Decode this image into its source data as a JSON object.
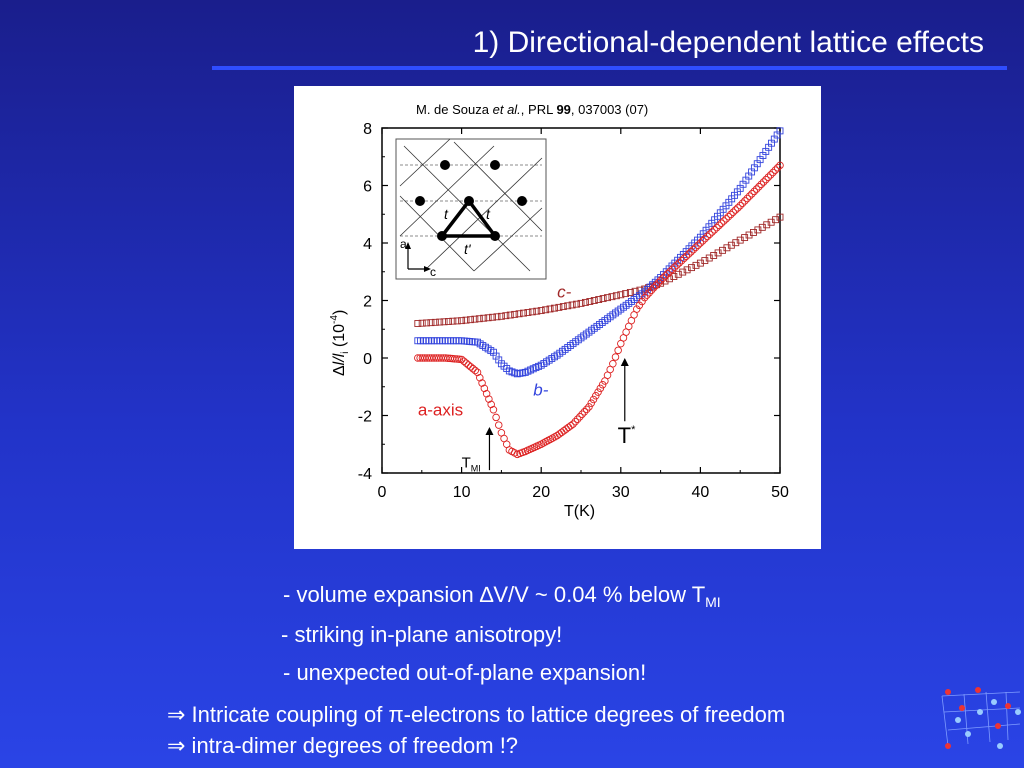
{
  "slide": {
    "title": "1) Directional-dependent lattice effects",
    "bullets": [
      {
        "pre": "- volume expansion ",
        "symbol": "∆",
        "mid": "V/V ~ 0.04 % below T",
        "sub": "MI"
      },
      {
        "text": "- striking in-plane anisotropy!"
      },
      {
        "text": "- unexpected out-of-plane expansion!"
      }
    ],
    "conclusions": [
      {
        "arrow": "⇒",
        "pre": " Intricate coupling of ",
        "symbol": "π",
        "post": "-electrons to lattice degrees of freedom"
      },
      {
        "arrow": "⇒",
        "text": " intra-dimer degrees of freedom !?"
      }
    ]
  },
  "chart_data": {
    "type": "scatter",
    "citation": {
      "authors": "M. de Souza ",
      "etal": "et al.",
      "journal": ", PRL ",
      "volume": "99",
      "rest": ", 037003 (07)"
    },
    "xlabel": "T(K)",
    "ylabel": {
      "delta": "Δ",
      "l": "l",
      "slash": "/l",
      "sub": "i",
      "unit": " (10",
      "exp": "-4",
      "close": ")"
    },
    "xlim": [
      0,
      50
    ],
    "ylim": [
      -4,
      8
    ],
    "xticks": [
      0,
      10,
      20,
      30,
      40,
      50
    ],
    "yticks": [
      -4,
      -2,
      0,
      2,
      4,
      6,
      8
    ],
    "grid": false,
    "series": [
      {
        "name": "c-",
        "marker": "square",
        "color": "#a02828",
        "points": [
          [
            4.5,
            1.2
          ],
          [
            10,
            1.3
          ],
          [
            15,
            1.45
          ],
          [
            20,
            1.65
          ],
          [
            25,
            1.9
          ],
          [
            30,
            2.2
          ],
          [
            33,
            2.4
          ],
          [
            35,
            2.6
          ],
          [
            40,
            3.3
          ],
          [
            45,
            4.1
          ],
          [
            50,
            4.9
          ]
        ]
      },
      {
        "name": "b-",
        "marker": "square",
        "color": "#3344dd",
        "points": [
          [
            4.5,
            0.6
          ],
          [
            10,
            0.6
          ],
          [
            12,
            0.55
          ],
          [
            14,
            0.2
          ],
          [
            15,
            -0.2
          ],
          [
            16,
            -0.45
          ],
          [
            17,
            -0.55
          ],
          [
            18,
            -0.5
          ],
          [
            20,
            -0.25
          ],
          [
            22,
            0.1
          ],
          [
            25,
            0.7
          ],
          [
            28,
            1.3
          ],
          [
            30,
            1.7
          ],
          [
            33,
            2.3
          ],
          [
            35,
            2.8
          ],
          [
            40,
            4.2
          ],
          [
            45,
            5.9
          ],
          [
            50,
            7.9
          ]
        ]
      },
      {
        "name": "a-axis",
        "marker": "circle",
        "color": "#dd2222",
        "points": [
          [
            4.5,
            0.0
          ],
          [
            8,
            0.0
          ],
          [
            10,
            -0.05
          ],
          [
            12,
            -0.5
          ],
          [
            14,
            -1.8
          ],
          [
            15,
            -2.6
          ],
          [
            16,
            -3.2
          ],
          [
            17,
            -3.35
          ],
          [
            18,
            -3.25
          ],
          [
            20,
            -3.0
          ],
          [
            22,
            -2.7
          ],
          [
            24,
            -2.3
          ],
          [
            26,
            -1.7
          ],
          [
            28,
            -0.8
          ],
          [
            29,
            -0.2
          ],
          [
            30,
            0.5
          ],
          [
            31,
            1.1
          ],
          [
            32,
            1.7
          ],
          [
            33,
            2.1
          ],
          [
            35,
            2.7
          ],
          [
            40,
            4.0
          ],
          [
            45,
            5.3
          ],
          [
            50,
            6.7
          ]
        ]
      }
    ],
    "annotations": [
      {
        "label": "T",
        "sub": "MI",
        "x": 13.5,
        "arrow_from": -3.9,
        "arrow_to": -2.4
      },
      {
        "label": "T",
        "sup": "*",
        "x": 30.5,
        "arrow_from": -2.2,
        "arrow_to": 0.0
      }
    ],
    "inset": {
      "labels": {
        "t_left": "t",
        "t_right": "t",
        "t_prime": "t'",
        "axis_a": "a",
        "axis_c": "c"
      }
    }
  }
}
